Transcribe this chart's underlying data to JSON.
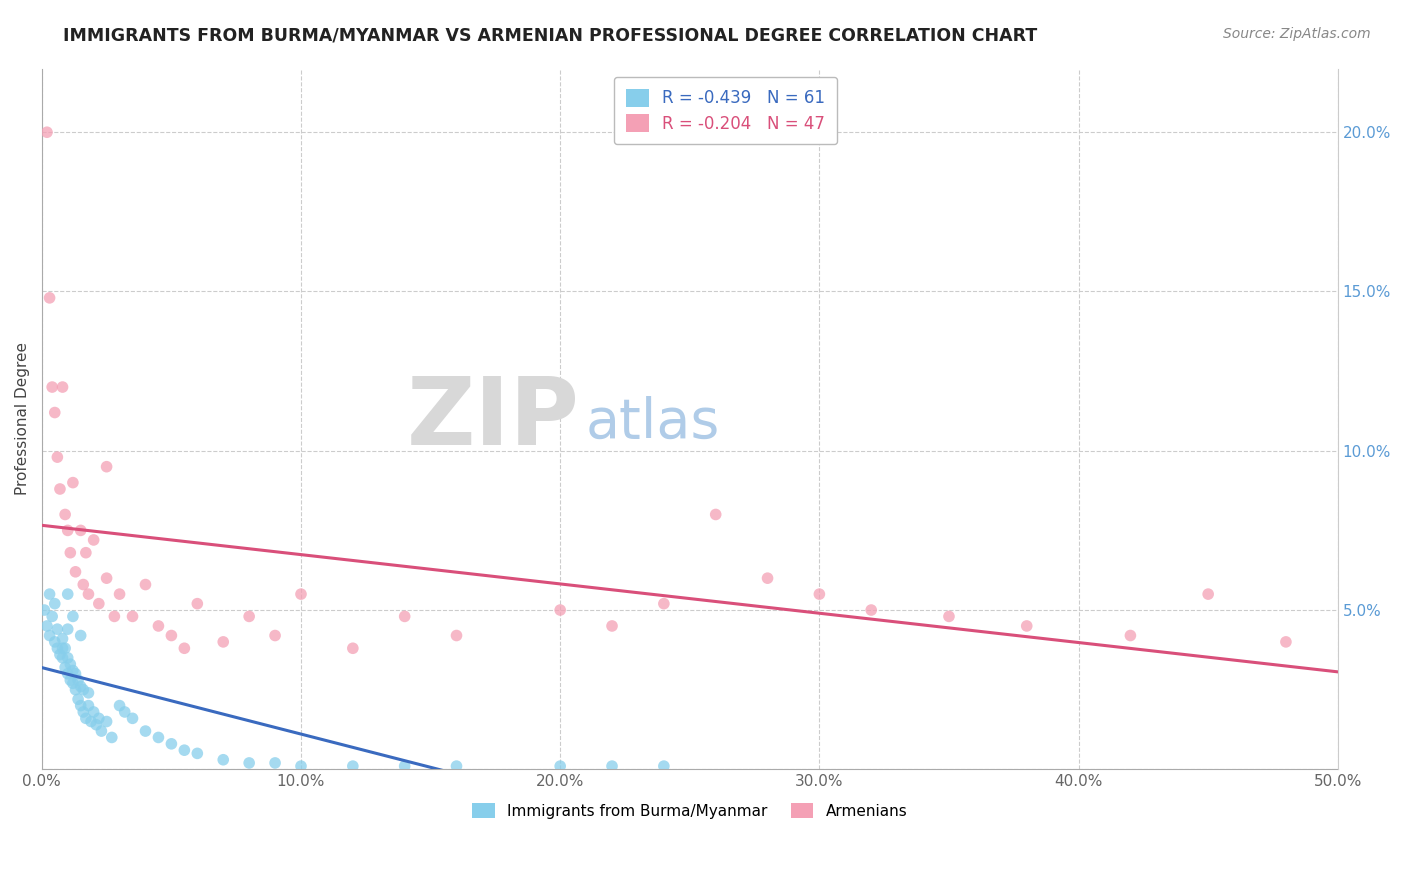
{
  "title": "IMMIGRANTS FROM BURMA/MYANMAR VS ARMENIAN PROFESSIONAL DEGREE CORRELATION CHART",
  "source": "Source: ZipAtlas.com",
  "ylabel": "Professional Degree",
  "xlim": [
    0.0,
    0.5
  ],
  "ylim": [
    0.0,
    0.22
  ],
  "x_ticks": [
    0.0,
    0.1,
    0.2,
    0.3,
    0.4,
    0.5
  ],
  "y_ticks": [
    0.0,
    0.05,
    0.1,
    0.15,
    0.2
  ],
  "x_tick_labels": [
    "0.0%",
    "10.0%",
    "20.0%",
    "30.0%",
    "40.0%",
    "50.0%"
  ],
  "right_y_tick_labels": [
    "5.0%",
    "10.0%",
    "15.0%",
    "20.0%"
  ],
  "blue_color": "#87ceeb",
  "pink_color": "#f4a0b5",
  "blue_line_color": "#3a6abf",
  "pink_line_color": "#d94f7a",
  "blue_R": -0.439,
  "blue_N": 61,
  "pink_R": -0.204,
  "pink_N": 47,
  "legend_label_blue": "Immigrants from Burma/Myanmar",
  "legend_label_pink": "Armenians",
  "blue_scatter_x": [
    0.001,
    0.002,
    0.003,
    0.003,
    0.004,
    0.005,
    0.005,
    0.006,
    0.006,
    0.007,
    0.008,
    0.008,
    0.009,
    0.009,
    0.01,
    0.01,
    0.01,
    0.011,
    0.011,
    0.012,
    0.012,
    0.013,
    0.013,
    0.014,
    0.014,
    0.015,
    0.015,
    0.016,
    0.016,
    0.017,
    0.018,
    0.018,
    0.019,
    0.02,
    0.021,
    0.022,
    0.023,
    0.025,
    0.027,
    0.03,
    0.032,
    0.035,
    0.04,
    0.045,
    0.05,
    0.055,
    0.06,
    0.07,
    0.08,
    0.09,
    0.1,
    0.12,
    0.14,
    0.16,
    0.2,
    0.22,
    0.24,
    0.01,
    0.012,
    0.015,
    0.008
  ],
  "blue_scatter_y": [
    0.05,
    0.045,
    0.042,
    0.055,
    0.048,
    0.04,
    0.052,
    0.038,
    0.044,
    0.036,
    0.041,
    0.035,
    0.038,
    0.032,
    0.035,
    0.03,
    0.044,
    0.028,
    0.033,
    0.027,
    0.031,
    0.025,
    0.03,
    0.022,
    0.028,
    0.02,
    0.026,
    0.018,
    0.025,
    0.016,
    0.02,
    0.024,
    0.015,
    0.018,
    0.014,
    0.016,
    0.012,
    0.015,
    0.01,
    0.02,
    0.018,
    0.016,
    0.012,
    0.01,
    0.008,
    0.006,
    0.005,
    0.003,
    0.002,
    0.002,
    0.001,
    0.001,
    0.001,
    0.001,
    0.001,
    0.001,
    0.001,
    0.055,
    0.048,
    0.042,
    0.038
  ],
  "pink_scatter_x": [
    0.002,
    0.003,
    0.004,
    0.005,
    0.006,
    0.007,
    0.008,
    0.009,
    0.01,
    0.011,
    0.012,
    0.013,
    0.015,
    0.016,
    0.017,
    0.018,
    0.02,
    0.022,
    0.025,
    0.028,
    0.03,
    0.035,
    0.04,
    0.045,
    0.05,
    0.055,
    0.06,
    0.07,
    0.08,
    0.09,
    0.1,
    0.12,
    0.14,
    0.16,
    0.2,
    0.22,
    0.24,
    0.26,
    0.28,
    0.3,
    0.32,
    0.35,
    0.38,
    0.42,
    0.45,
    0.48,
    0.025
  ],
  "pink_scatter_y": [
    0.2,
    0.148,
    0.12,
    0.112,
    0.098,
    0.088,
    0.12,
    0.08,
    0.075,
    0.068,
    0.09,
    0.062,
    0.075,
    0.058,
    0.068,
    0.055,
    0.072,
    0.052,
    0.06,
    0.048,
    0.055,
    0.048,
    0.058,
    0.045,
    0.042,
    0.038,
    0.052,
    0.04,
    0.048,
    0.042,
    0.055,
    0.038,
    0.048,
    0.042,
    0.05,
    0.045,
    0.052,
    0.08,
    0.06,
    0.055,
    0.05,
    0.048,
    0.045,
    0.042,
    0.055,
    0.04,
    0.095
  ]
}
